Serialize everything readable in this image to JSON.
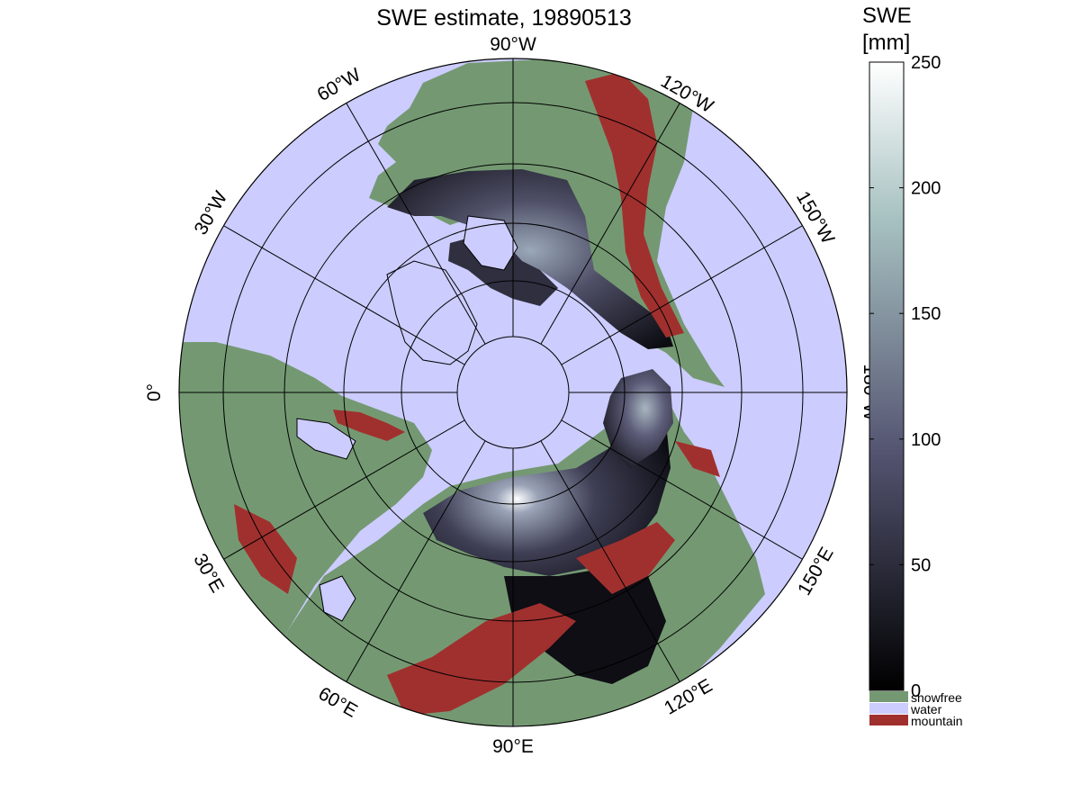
{
  "map": {
    "title": "SWE estimate, 19890513",
    "projection": "north-polar stereographic, 90°E at bottom",
    "colors": {
      "water": "#ccccff",
      "snowfree": "#749972",
      "mountain": "#a0302e",
      "snow_low": "#050507",
      "snow_mid": "#4f4f6b",
      "snow_high": "#ffffff",
      "coastline": "#000000",
      "graticule": "#000000"
    },
    "longitude_labels": {
      "lon_90W": "90°W",
      "lon_120W": "120°W",
      "lon_150W": "150°W",
      "lon_180W": "180°W",
      "lon_150E": "150°E",
      "lon_120E": "120°E",
      "lon_90E": "90°E",
      "lon_60E": "60°E",
      "lon_30E": "30°E",
      "lon_0": "0°",
      "lon_30W": "30°W",
      "lon_60W": "60°W"
    }
  },
  "colorbar": {
    "title_line1": "SWE",
    "title_line2": "[mm]",
    "unit": "mm",
    "range": [
      0,
      250
    ],
    "ticks": [
      "0",
      "50",
      "100",
      "150",
      "200",
      "250"
    ],
    "tick_values": [
      0,
      50,
      100,
      150,
      200,
      250
    ],
    "colormap": "bone (black to white)"
  },
  "legend": {
    "items": [
      {
        "label": "snowfree",
        "color": "#749972"
      },
      {
        "label": "water",
        "color": "#ccccff"
      },
      {
        "label": "mountain",
        "color": "#a0302e"
      }
    ]
  }
}
